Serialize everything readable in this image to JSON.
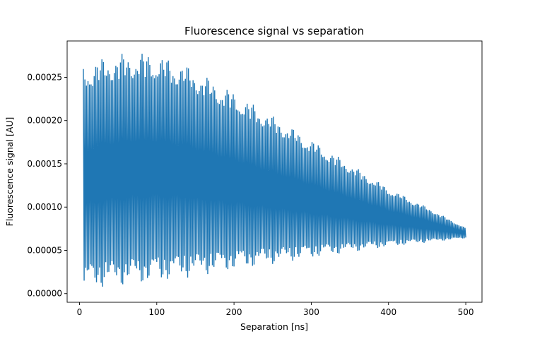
{
  "chart_data": {
    "type": "line",
    "title": "Fluorescence signal vs separation",
    "xlabel": "Separation [ns]",
    "ylabel": "Fluorescence signal [AU]",
    "xlim": [
      -16,
      521
    ],
    "ylim": [
      -1e-05,
      0.000292
    ],
    "xticks": [
      0,
      100,
      200,
      300,
      400,
      500
    ],
    "xtick_labels": [
      "0",
      "100",
      "200",
      "300",
      "400",
      "500"
    ],
    "yticks": [
      0,
      5e-05,
      0.0001,
      0.00015,
      0.0002,
      0.00025
    ],
    "ytick_labels": [
      "0.00000",
      "0.00005",
      "0.00010",
      "0.00015",
      "0.00020",
      "0.00025"
    ],
    "grid": false,
    "line_color": "#1f77b4",
    "series": [
      {
        "x_start": 5,
        "x_end": 500,
        "points_per_ns": 1,
        "upper_envelope": {
          "x": [
            5,
            20,
            50,
            90,
            130,
            200,
            300,
            400,
            450,
            500
          ],
          "y": [
            0.000265,
            0.00027,
            0.000277,
            0.000279,
            0.000268,
            0.000233,
            0.000178,
            0.000122,
            0.0001,
            7.6e-05
          ]
        },
        "lower_envelope": {
          "x": [
            5,
            20,
            50,
            90,
            130,
            200,
            300,
            400,
            450,
            500
          ],
          "y": [
            4e-06,
            6e-06,
            9e-06,
            1.2e-05,
            1.7e-05,
            2.7e-05,
            4.1e-05,
            5.4e-05,
            5.9e-05,
            6.4e-05
          ]
        }
      }
    ]
  }
}
